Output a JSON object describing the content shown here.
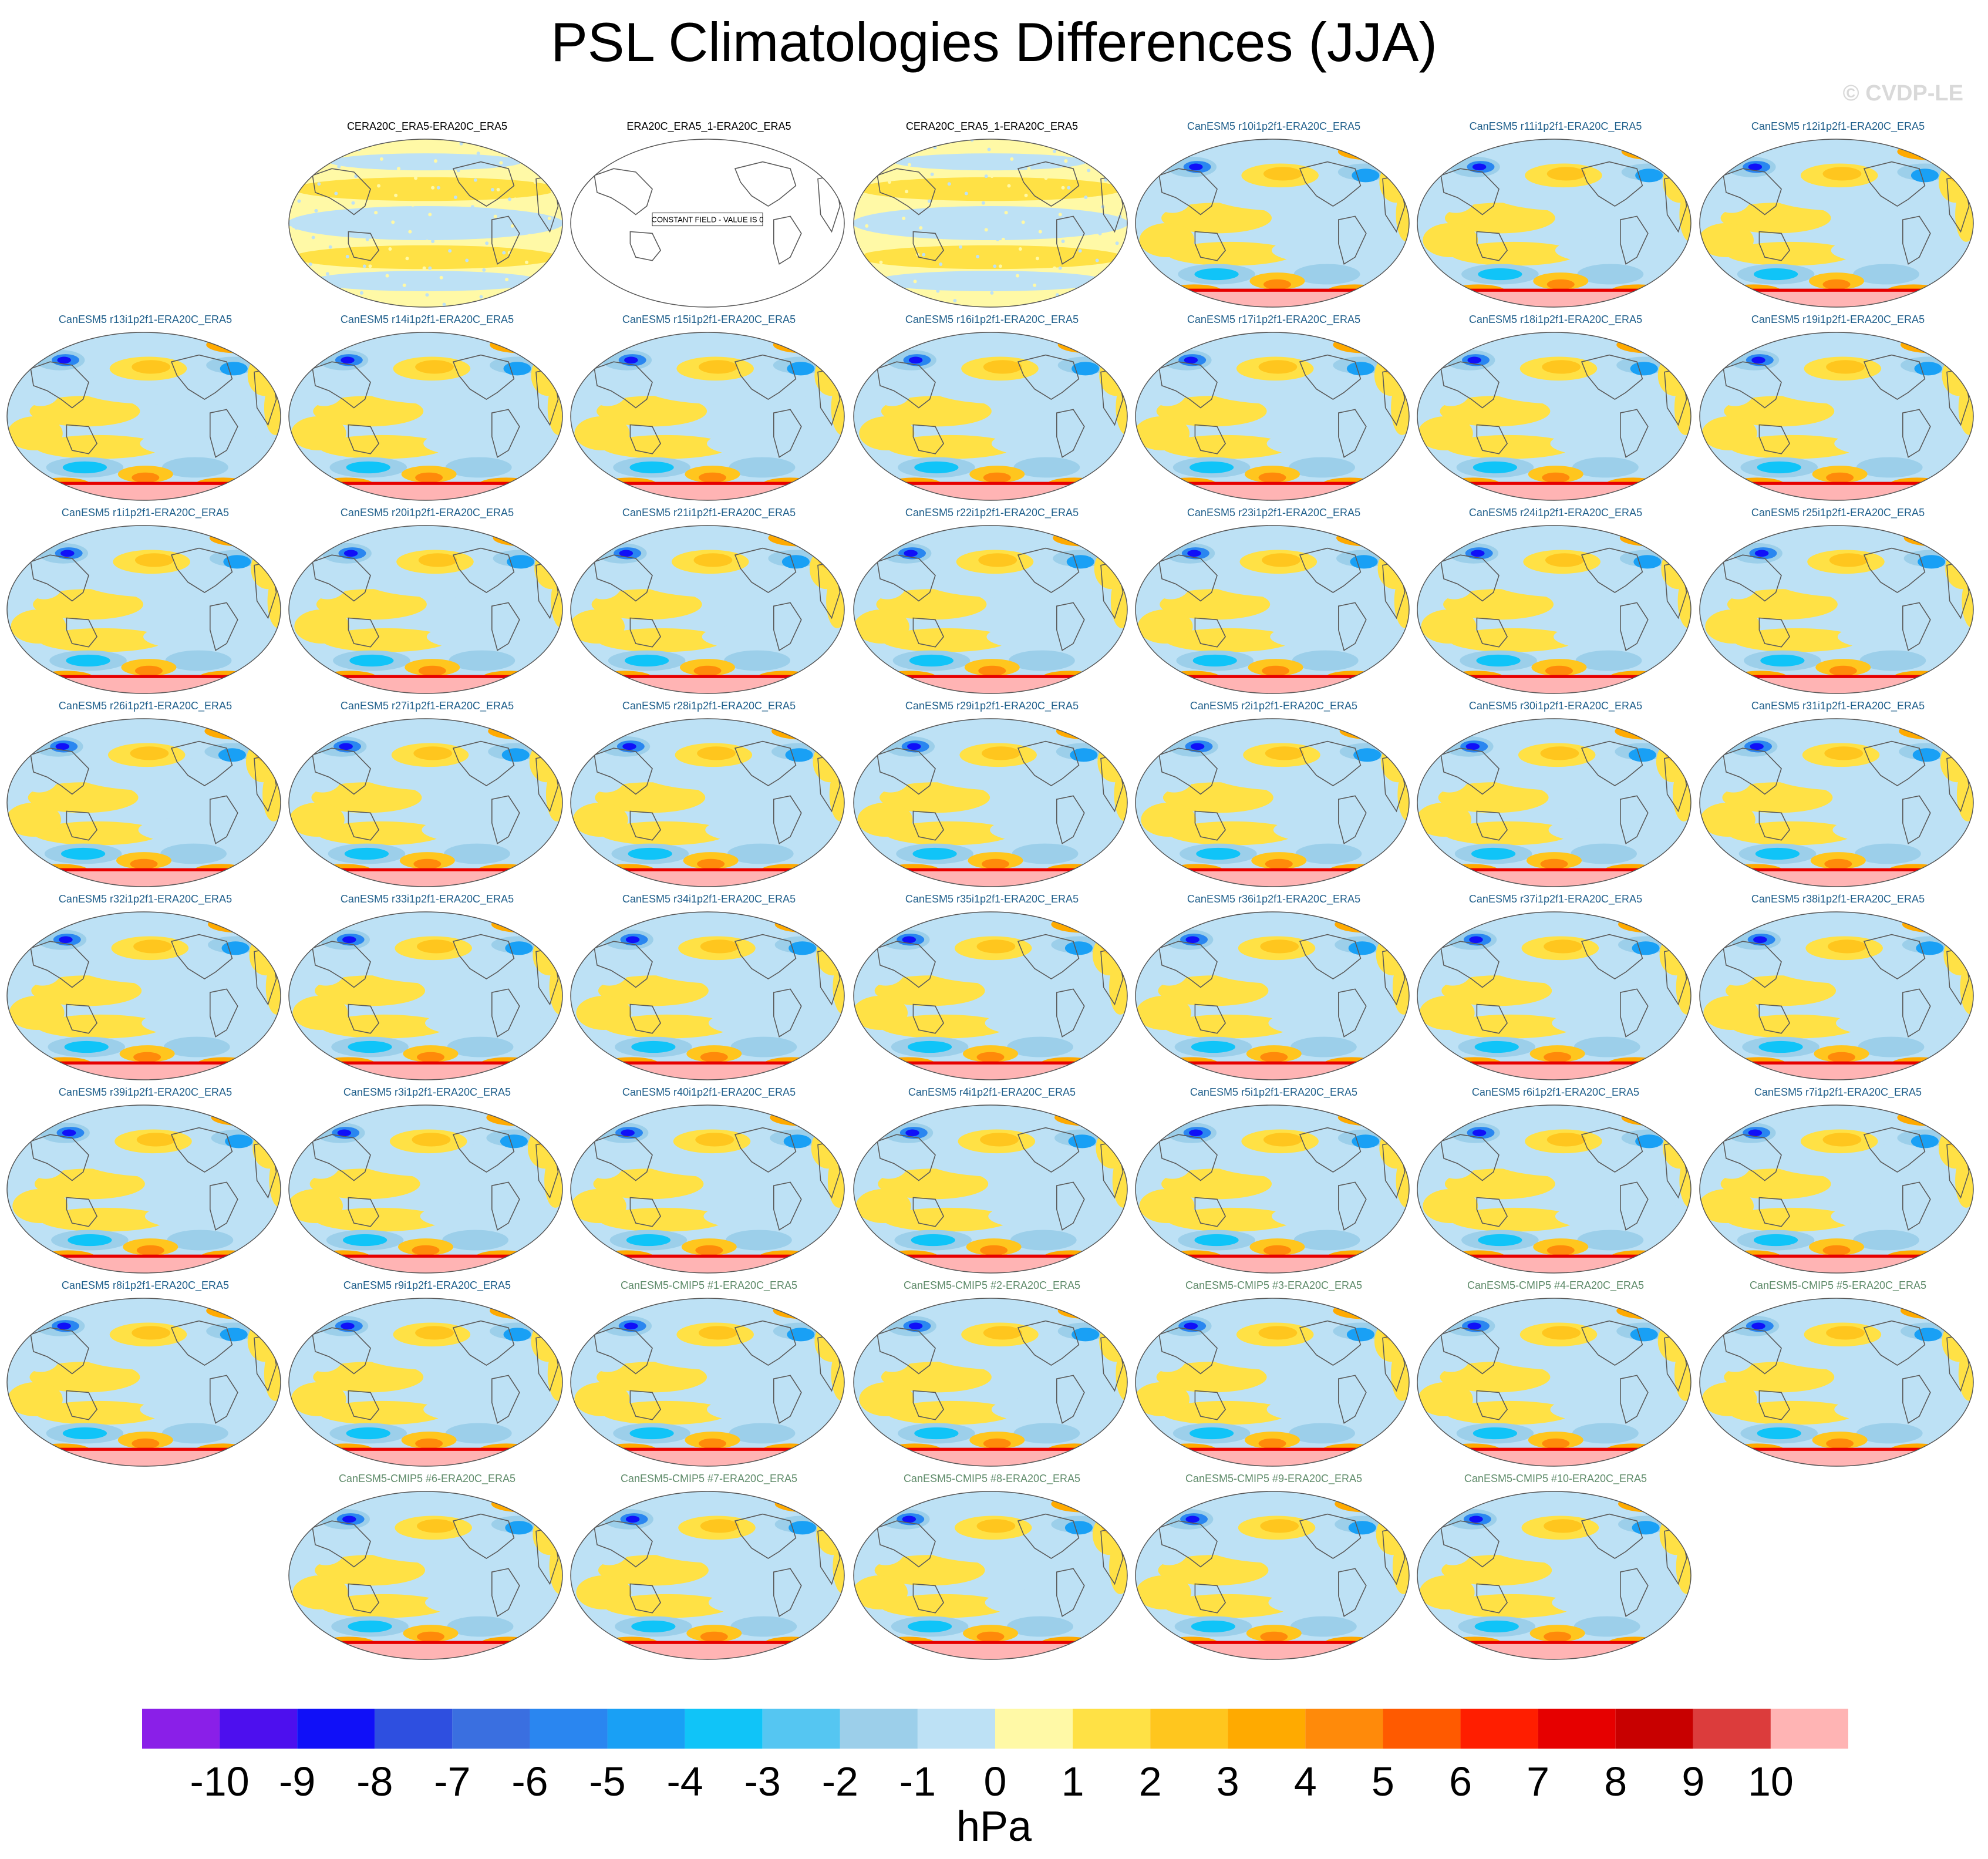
{
  "title": "PSL Climatologies Differences (JJA)",
  "watermark": "© CVDP-LE",
  "colors": {
    "obs_title": "#000000",
    "member_title": "#1f5f8b",
    "cmip5_title": "#5f8b6a",
    "colorbar": [
      "#8a1fe8",
      "#4d0fee",
      "#1010f8",
      "#2e4fe0",
      "#3a6fe0",
      "#2a86f0",
      "#19a0f5",
      "#10c4f8",
      "#55c6f2",
      "#9ccfea",
      "#bde1f5",
      "#fff9a6",
      "#ffe145",
      "#ffc61e",
      "#ffaa00",
      "#ff8a0a",
      "#ff5a00",
      "#ff1e00",
      "#e60000",
      "#c80000",
      "#dc3c3c",
      "#ffb4b4"
    ]
  },
  "chart_data": {
    "type": "heatmap",
    "title": "PSL Climatologies Differences (JJA)",
    "projection": "Robinson (global, Pacific-centered)",
    "colorbar": {
      "levels": [
        -10,
        -9,
        -8,
        -7,
        -6,
        -5,
        -4,
        -3,
        -2,
        -1,
        0,
        1,
        2,
        3,
        4,
        5,
        6,
        7,
        8,
        9,
        10
      ],
      "tick_labels": [
        "-10",
        "-9",
        "-8",
        "-7",
        "-6",
        "-5",
        "-4",
        "-3",
        "-2",
        "-1",
        "0",
        "1",
        "2",
        "3",
        "4",
        "5",
        "6",
        "7",
        "8",
        "9",
        "10"
      ],
      "unit": "hPa"
    },
    "panels": [
      {
        "label": "CERA20C_ERA5-ERA20C_ERA5",
        "kind": "obs"
      },
      {
        "label": "ERA20C_ERA5_1-ERA20C_ERA5",
        "kind": "constant",
        "note": "CONSTANT FIELD - VALUE IS 0"
      },
      {
        "label": "CERA20C_ERA5_1-ERA20C_ERA5",
        "kind": "obs"
      },
      {
        "label": "CanESM5 r10i1p2f1-ERA20C_ERA5",
        "kind": "member"
      },
      {
        "label": "CanESM5 r11i1p2f1-ERA20C_ERA5",
        "kind": "member"
      },
      {
        "label": "CanESM5 r12i1p2f1-ERA20C_ERA5",
        "kind": "member"
      },
      {
        "label": "CanESM5 r13i1p2f1-ERA20C_ERA5",
        "kind": "member"
      },
      {
        "label": "CanESM5 r14i1p2f1-ERA20C_ERA5",
        "kind": "member"
      },
      {
        "label": "CanESM5 r15i1p2f1-ERA20C_ERA5",
        "kind": "member"
      },
      {
        "label": "CanESM5 r16i1p2f1-ERA20C_ERA5",
        "kind": "member"
      },
      {
        "label": "CanESM5 r17i1p2f1-ERA20C_ERA5",
        "kind": "member"
      },
      {
        "label": "CanESM5 r18i1p2f1-ERA20C_ERA5",
        "kind": "member"
      },
      {
        "label": "CanESM5 r19i1p2f1-ERA20C_ERA5",
        "kind": "member"
      },
      {
        "label": "CanESM5 r1i1p2f1-ERA20C_ERA5",
        "kind": "member"
      },
      {
        "label": "CanESM5 r20i1p2f1-ERA20C_ERA5",
        "kind": "member"
      },
      {
        "label": "CanESM5 r21i1p2f1-ERA20C_ERA5",
        "kind": "member"
      },
      {
        "label": "CanESM5 r22i1p2f1-ERA20C_ERA5",
        "kind": "member"
      },
      {
        "label": "CanESM5 r23i1p2f1-ERA20C_ERA5",
        "kind": "member"
      },
      {
        "label": "CanESM5 r24i1p2f1-ERA20C_ERA5",
        "kind": "member"
      },
      {
        "label": "CanESM5 r25i1p2f1-ERA20C_ERA5",
        "kind": "member"
      },
      {
        "label": "CanESM5 r26i1p2f1-ERA20C_ERA5",
        "kind": "member"
      },
      {
        "label": "CanESM5 r27i1p2f1-ERA20C_ERA5",
        "kind": "member"
      },
      {
        "label": "CanESM5 r28i1p2f1-ERA20C_ERA5",
        "kind": "member"
      },
      {
        "label": "CanESM5 r29i1p2f1-ERA20C_ERA5",
        "kind": "member"
      },
      {
        "label": "CanESM5 r2i1p2f1-ERA20C_ERA5",
        "kind": "member"
      },
      {
        "label": "CanESM5 r30i1p2f1-ERA20C_ERA5",
        "kind": "member"
      },
      {
        "label": "CanESM5 r31i1p2f1-ERA20C_ERA5",
        "kind": "member"
      },
      {
        "label": "CanESM5 r32i1p2f1-ERA20C_ERA5",
        "kind": "member"
      },
      {
        "label": "CanESM5 r33i1p2f1-ERA20C_ERA5",
        "kind": "member"
      },
      {
        "label": "CanESM5 r34i1p2f1-ERA20C_ERA5",
        "kind": "member"
      },
      {
        "label": "CanESM5 r35i1p2f1-ERA20C_ERA5",
        "kind": "member"
      },
      {
        "label": "CanESM5 r36i1p2f1-ERA20C_ERA5",
        "kind": "member"
      },
      {
        "label": "CanESM5 r37i1p2f1-ERA20C_ERA5",
        "kind": "member"
      },
      {
        "label": "CanESM5 r38i1p2f1-ERA20C_ERA5",
        "kind": "member"
      },
      {
        "label": "CanESM5 r39i1p2f1-ERA20C_ERA5",
        "kind": "member"
      },
      {
        "label": "CanESM5 r3i1p2f1-ERA20C_ERA5",
        "kind": "member"
      },
      {
        "label": "CanESM5 r40i1p2f1-ERA20C_ERA5",
        "kind": "member"
      },
      {
        "label": "CanESM5 r4i1p2f1-ERA20C_ERA5",
        "kind": "member"
      },
      {
        "label": "CanESM5 r5i1p2f1-ERA20C_ERA5",
        "kind": "member"
      },
      {
        "label": "CanESM5 r6i1p2f1-ERA20C_ERA5",
        "kind": "member"
      },
      {
        "label": "CanESM5 r7i1p2f1-ERA20C_ERA5",
        "kind": "member"
      },
      {
        "label": "CanESM5 r8i1p2f1-ERA20C_ERA5",
        "kind": "member"
      },
      {
        "label": "CanESM5 r9i1p2f1-ERA20C_ERA5",
        "kind": "member"
      },
      {
        "label": "CanESM5-CMIP5 #1-ERA20C_ERA5",
        "kind": "cmip5"
      },
      {
        "label": "CanESM5-CMIP5 #2-ERA20C_ERA5",
        "kind": "cmip5"
      },
      {
        "label": "CanESM5-CMIP5 #3-ERA20C_ERA5",
        "kind": "cmip5"
      },
      {
        "label": "CanESM5-CMIP5 #4-ERA20C_ERA5",
        "kind": "cmip5"
      },
      {
        "label": "CanESM5-CMIP5 #5-ERA20C_ERA5",
        "kind": "cmip5"
      },
      {
        "label": "CanESM5-CMIP5 #6-ERA20C_ERA5",
        "kind": "cmip5"
      },
      {
        "label": "CanESM5-CMIP5 #7-ERA20C_ERA5",
        "kind": "cmip5"
      },
      {
        "label": "CanESM5-CMIP5 #8-ERA20C_ERA5",
        "kind": "cmip5"
      },
      {
        "label": "CanESM5-CMIP5 #9-ERA20C_ERA5",
        "kind": "cmip5"
      },
      {
        "label": "CanESM5-CMIP5 #10-ERA20C_ERA5",
        "kind": "cmip5"
      }
    ]
  }
}
